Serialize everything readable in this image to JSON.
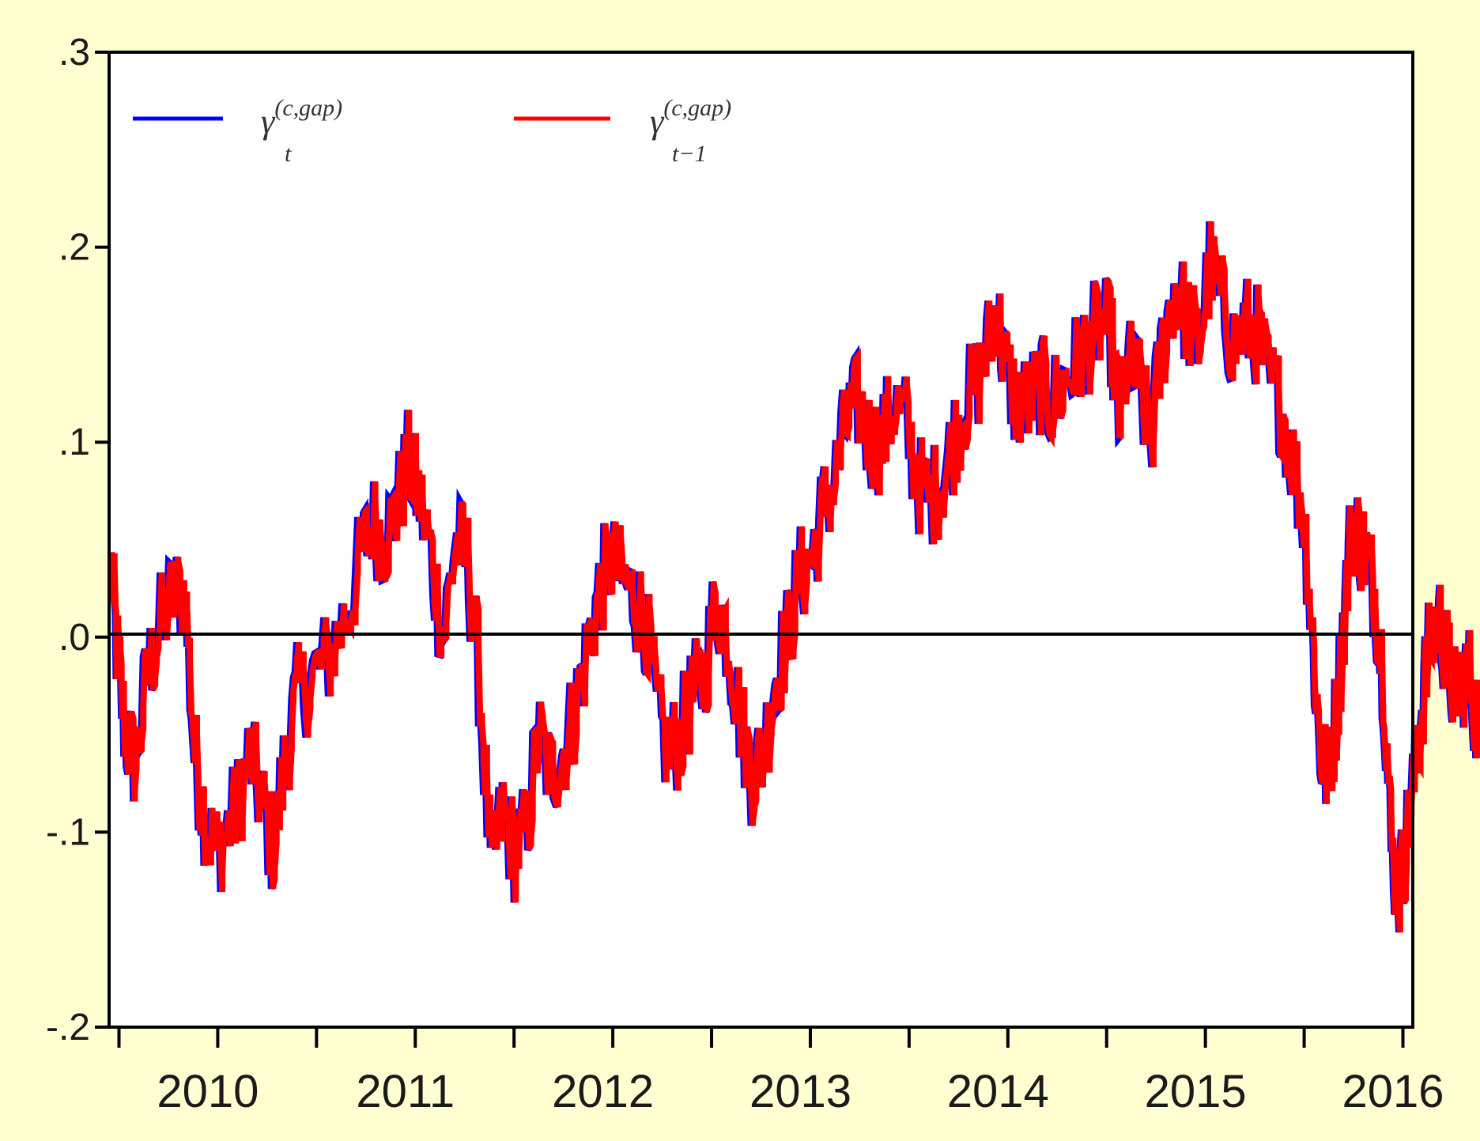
{
  "chart_data": {
    "type": "line",
    "title": "",
    "xlabel": "",
    "ylabel": "",
    "x_range": [
      2009.45,
      2016.05
    ],
    "ylim": [
      -0.2,
      0.3
    ],
    "y_ticks": [
      {
        "value": 0.3,
        "label": ".3"
      },
      {
        "value": 0.2,
        "label": ".2"
      },
      {
        "value": 0.1,
        "label": ".1"
      },
      {
        "value": 0.0,
        "label": ".0"
      },
      {
        "value": -0.1,
        "label": "-.1"
      },
      {
        "value": -0.2,
        "label": "-.2"
      }
    ],
    "x_tick_labels": [
      {
        "value": 2010,
        "label": "2010"
      },
      {
        "value": 2011,
        "label": "2011"
      },
      {
        "value": 2012,
        "label": "2012"
      },
      {
        "value": 2013,
        "label": "2013"
      },
      {
        "value": 2014,
        "label": "2014"
      },
      {
        "value": 2015,
        "label": "2015"
      },
      {
        "value": 2016,
        "label": "2016"
      }
    ],
    "zero_line": true,
    "grid": false,
    "legend_position": "top-left",
    "background_color": "#ffffd2",
    "series": [
      {
        "name": "γt(c,gap)",
        "color": "#0000ff",
        "legend_main": "γ",
        "legend_sup": "(c,gap)",
        "legend_sub": "t"
      },
      {
        "name": "γt−1(c,gap)",
        "color": "#ff0000",
        "legend_main": "γ",
        "legend_sup": "(c,gap)",
        "legend_sub": "t−1"
      }
    ],
    "anchors": [
      [
        2009.46,
        0.035
      ],
      [
        2009.49,
        -0.01
      ],
      [
        2009.53,
        -0.05
      ],
      [
        2009.58,
        -0.065
      ],
      [
        2009.64,
        -0.02
      ],
      [
        2009.7,
        0.005
      ],
      [
        2009.76,
        0.02
      ],
      [
        2009.83,
        0.025
      ],
      [
        2009.88,
        -0.06
      ],
      [
        2009.93,
        -0.09
      ],
      [
        2009.98,
        -0.11
      ],
      [
        2010.04,
        -0.1
      ],
      [
        2010.1,
        -0.085
      ],
      [
        2010.16,
        -0.06
      ],
      [
        2010.22,
        -0.085
      ],
      [
        2010.28,
        -0.11
      ],
      [
        2010.34,
        -0.06
      ],
      [
        2010.4,
        -0.03
      ],
      [
        2010.48,
        -0.02
      ],
      [
        2010.56,
        -0.01
      ],
      [
        2010.64,
        0.01
      ],
      [
        2010.72,
        0.04
      ],
      [
        2010.78,
        0.06
      ],
      [
        2010.84,
        0.05
      ],
      [
        2010.9,
        0.065
      ],
      [
        2010.96,
        0.09
      ],
      [
        2011.02,
        0.07
      ],
      [
        2011.08,
        0.04
      ],
      [
        2011.14,
        0.0
      ],
      [
        2011.2,
        0.05
      ],
      [
        2011.26,
        0.04
      ],
      [
        2011.32,
        -0.02
      ],
      [
        2011.38,
        -0.12
      ],
      [
        2011.44,
        -0.09
      ],
      [
        2011.5,
        -0.11
      ],
      [
        2011.56,
        -0.1
      ],
      [
        2011.62,
        -0.05
      ],
      [
        2011.68,
        -0.07
      ],
      [
        2011.74,
        -0.06
      ],
      [
        2011.8,
        -0.04
      ],
      [
        2011.86,
        -0.01
      ],
      [
        2011.92,
        0.02
      ],
      [
        2011.98,
        0.04
      ],
      [
        2012.04,
        0.03
      ],
      [
        2012.1,
        0.02
      ],
      [
        2012.16,
        0.01
      ],
      [
        2012.22,
        -0.04
      ],
      [
        2012.28,
        -0.06
      ],
      [
        2012.34,
        -0.05
      ],
      [
        2012.4,
        -0.03
      ],
      [
        2012.46,
        -0.02
      ],
      [
        2012.52,
        0.02
      ],
      [
        2012.58,
        0.0
      ],
      [
        2012.64,
        -0.04
      ],
      [
        2012.7,
        -0.07
      ],
      [
        2012.76,
        -0.06
      ],
      [
        2012.82,
        -0.02
      ],
      [
        2012.88,
        0.0
      ],
      [
        2012.94,
        0.03
      ],
      [
        2013.0,
        0.04
      ],
      [
        2013.06,
        0.065
      ],
      [
        2013.12,
        0.08
      ],
      [
        2013.18,
        0.11
      ],
      [
        2013.24,
        0.12
      ],
      [
        2013.3,
        0.1
      ],
      [
        2013.36,
        0.1
      ],
      [
        2013.42,
        0.12
      ],
      [
        2013.48,
        0.11
      ],
      [
        2013.54,
        0.08
      ],
      [
        2013.6,
        0.07
      ],
      [
        2013.66,
        0.08
      ],
      [
        2013.72,
        0.1
      ],
      [
        2013.78,
        0.12
      ],
      [
        2013.84,
        0.13
      ],
      [
        2013.9,
        0.15
      ],
      [
        2013.94,
        0.17
      ],
      [
        2013.98,
        0.14
      ],
      [
        2014.04,
        0.12
      ],
      [
        2014.1,
        0.12
      ],
      [
        2014.16,
        0.13
      ],
      [
        2014.22,
        0.12
      ],
      [
        2014.28,
        0.13
      ],
      [
        2014.34,
        0.14
      ],
      [
        2014.4,
        0.15
      ],
      [
        2014.46,
        0.16
      ],
      [
        2014.52,
        0.155
      ],
      [
        2014.56,
        0.11
      ],
      [
        2014.6,
        0.14
      ],
      [
        2014.66,
        0.13
      ],
      [
        2014.72,
        0.1
      ],
      [
        2014.78,
        0.15
      ],
      [
        2014.84,
        0.18
      ],
      [
        2014.9,
        0.165
      ],
      [
        2014.96,
        0.15
      ],
      [
        2015.02,
        0.19
      ],
      [
        2015.08,
        0.17
      ],
      [
        2015.14,
        0.15
      ],
      [
        2015.2,
        0.16
      ],
      [
        2015.26,
        0.155
      ],
      [
        2015.32,
        0.13
      ],
      [
        2015.38,
        0.12
      ],
      [
        2015.44,
        0.09
      ],
      [
        2015.5,
        0.06
      ],
      [
        2015.54,
        0.0
      ],
      [
        2015.58,
        -0.06
      ],
      [
        2015.62,
        -0.07
      ],
      [
        2015.66,
        -0.04
      ],
      [
        2015.7,
        0.01
      ],
      [
        2015.74,
        0.06
      ],
      [
        2015.78,
        0.05
      ],
      [
        2015.82,
        0.04
      ],
      [
        2015.86,
        0.02
      ],
      [
        2015.9,
        -0.02
      ],
      [
        2015.94,
        -0.11
      ],
      [
        2015.98,
        -0.13
      ],
      [
        2016.02,
        -0.1
      ],
      [
        2016.06,
        -0.07
      ],
      [
        2016.1,
        -0.03
      ],
      [
        2016.14,
        0.0
      ],
      [
        2016.18,
        0.01
      ],
      [
        2016.22,
        -0.01
      ],
      [
        2016.26,
        -0.03
      ],
      [
        2016.3,
        -0.02
      ],
      [
        2016.34,
        -0.02
      ],
      [
        2016.38,
        -0.05
      ],
      [
        2016.42,
        -0.015
      ]
    ]
  }
}
